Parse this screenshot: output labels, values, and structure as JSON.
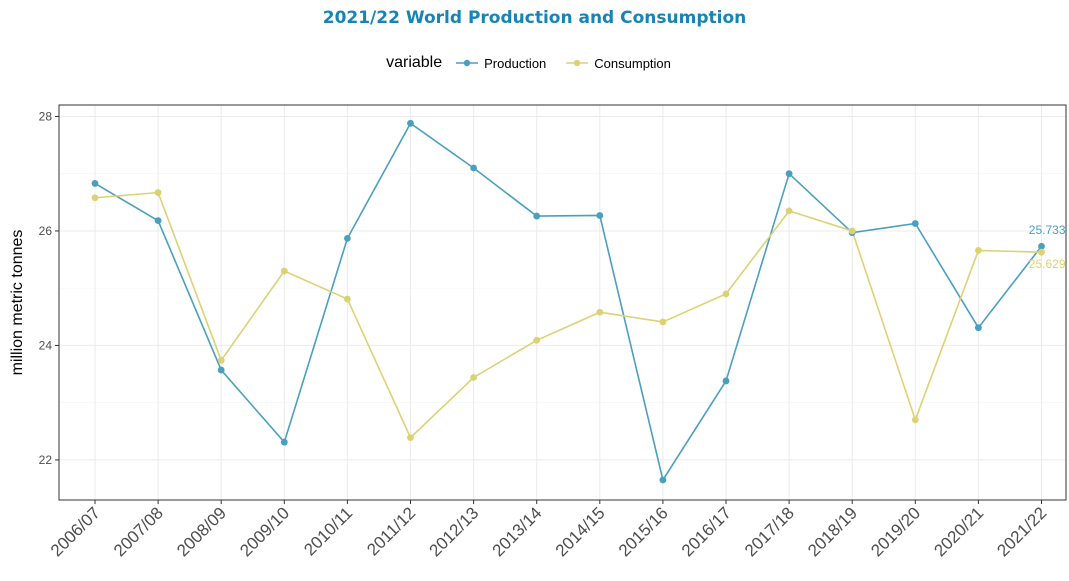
{
  "chart_data": {
    "type": "line",
    "title": "2021/22 World Production and Consumption",
    "ylabel": "million metric tonnes",
    "xlabel": "",
    "legend_title": "variable",
    "legend_position": "top",
    "grid": true,
    "ylim": [
      21.3,
      28.2
    ],
    "yticks": [
      22,
      24,
      26,
      28
    ],
    "categories": [
      "2006/07",
      "2007/08",
      "2008/09",
      "2009/10",
      "2010/11",
      "2011/12",
      "2012/13",
      "2013/14",
      "2014/15",
      "2015/16",
      "2016/17",
      "2017/18",
      "2018/19",
      "2019/20",
      "2020/21",
      "2021/22"
    ],
    "series": [
      {
        "name": "Production",
        "color": "#4A9FBF",
        "values": [
          26.83,
          26.18,
          23.57,
          22.31,
          25.87,
          27.88,
          27.1,
          26.26,
          26.27,
          21.65,
          23.38,
          27.0,
          25.97,
          26.13,
          24.31,
          25.733
        ]
      },
      {
        "name": "Consumption",
        "color": "#DCD274",
        "values": [
          26.58,
          26.67,
          23.74,
          25.3,
          24.81,
          22.39,
          23.44,
          24.09,
          24.58,
          24.41,
          24.9,
          26.35,
          26.0,
          22.7,
          25.66,
          25.629
        ]
      }
    ],
    "annotations": [
      {
        "series": 0,
        "text": "25.733"
      },
      {
        "series": 1,
        "text": "25.629"
      }
    ]
  },
  "colors": {
    "title": "#1784B6",
    "panel_border": "#333333",
    "grid": "#EBEBEB"
  }
}
